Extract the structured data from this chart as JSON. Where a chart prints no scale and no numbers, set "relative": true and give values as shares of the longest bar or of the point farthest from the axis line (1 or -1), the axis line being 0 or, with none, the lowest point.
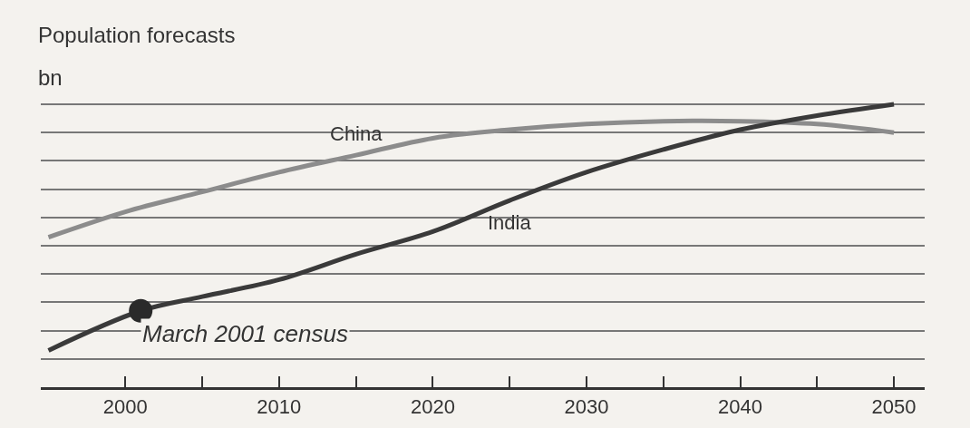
{
  "chart_data": {
    "type": "line",
    "title": "Population forecasts",
    "ylabel": "bn",
    "relative": true,
    "grid": "y",
    "legend": false,
    "xlim": [
      1994.5,
      2052
    ],
    "xticks": [
      2000,
      {
        "value": 2005,
        "label": null
      },
      2010,
      {
        "value": 2015,
        "label": null
      },
      2020,
      {
        "value": 2025,
        "label": null
      },
      2030,
      {
        "value": 2035,
        "label": null
      },
      2040,
      {
        "value": 2045,
        "label": null
      },
      2050
    ],
    "series": [
      {
        "name": "China",
        "color": "#8c8c8c",
        "x": [
          1995,
          2000,
          2005,
          2010,
          2015,
          2020,
          2025,
          2030,
          2035,
          2040,
          2045,
          2050
        ],
        "values": [
          0.53,
          0.62,
          0.69,
          0.76,
          0.82,
          0.88,
          0.91,
          0.93,
          0.94,
          0.94,
          0.93,
          0.9
        ]
      },
      {
        "name": "India",
        "color": "#3a3a3a",
        "x": [
          1995,
          2001,
          2005,
          2010,
          2015,
          2020,
          2025,
          2030,
          2035,
          2040,
          2045,
          2050
        ],
        "values": [
          0.13,
          0.27,
          0.32,
          0.38,
          0.47,
          0.55,
          0.66,
          0.76,
          0.84,
          0.91,
          0.96,
          1.0
        ]
      }
    ],
    "annotations": [
      {
        "text": "March 2001 census",
        "x": 2001,
        "y": 0.27
      }
    ]
  }
}
